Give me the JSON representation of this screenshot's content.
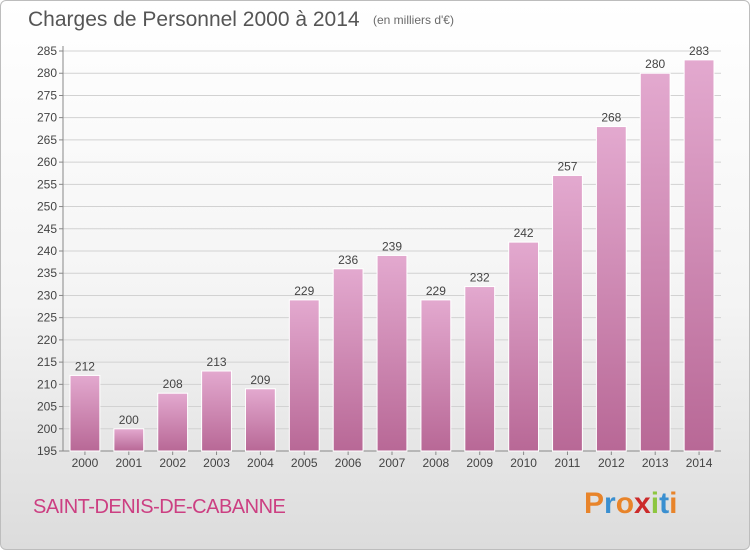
{
  "header": {
    "title": "Charges de Personnel 2000 à 2014",
    "subtitle": "(en milliers d'€)"
  },
  "footer": {
    "commune": "SAINT-DENIS-DE-CABANNE",
    "logo_text": "Proxiti",
    "logo_colors": [
      "#e8842a",
      "#3a8fd0",
      "#e8842a",
      "#cc2a2a",
      "#8dc63f",
      "#3a8fd0",
      "#e8842a"
    ]
  },
  "colors": {
    "bar_top": "#e3a9cf",
    "bar_bottom": "#b86896",
    "bar_edge": "#ffffff",
    "grid": "#d2d2d2",
    "title": "#555555",
    "commune": "#cc3f82"
  },
  "chart_data": {
    "type": "bar",
    "title": "Charges de Personnel 2000 à 2014",
    "subtitle": "(en milliers d'€)",
    "categories": [
      "2000",
      "2001",
      "2002",
      "2003",
      "2004",
      "2005",
      "2006",
      "2007",
      "2008",
      "2009",
      "2010",
      "2011",
      "2012",
      "2013",
      "2014"
    ],
    "values": [
      212,
      200,
      208,
      213,
      209,
      229,
      236,
      239,
      229,
      232,
      242,
      257,
      268,
      280,
      283
    ],
    "ylim": [
      195,
      285
    ],
    "yticks": [
      195,
      200,
      205,
      210,
      215,
      220,
      225,
      230,
      235,
      240,
      245,
      250,
      255,
      260,
      265,
      270,
      275,
      280,
      285
    ],
    "grid": true,
    "data_labels": true
  }
}
